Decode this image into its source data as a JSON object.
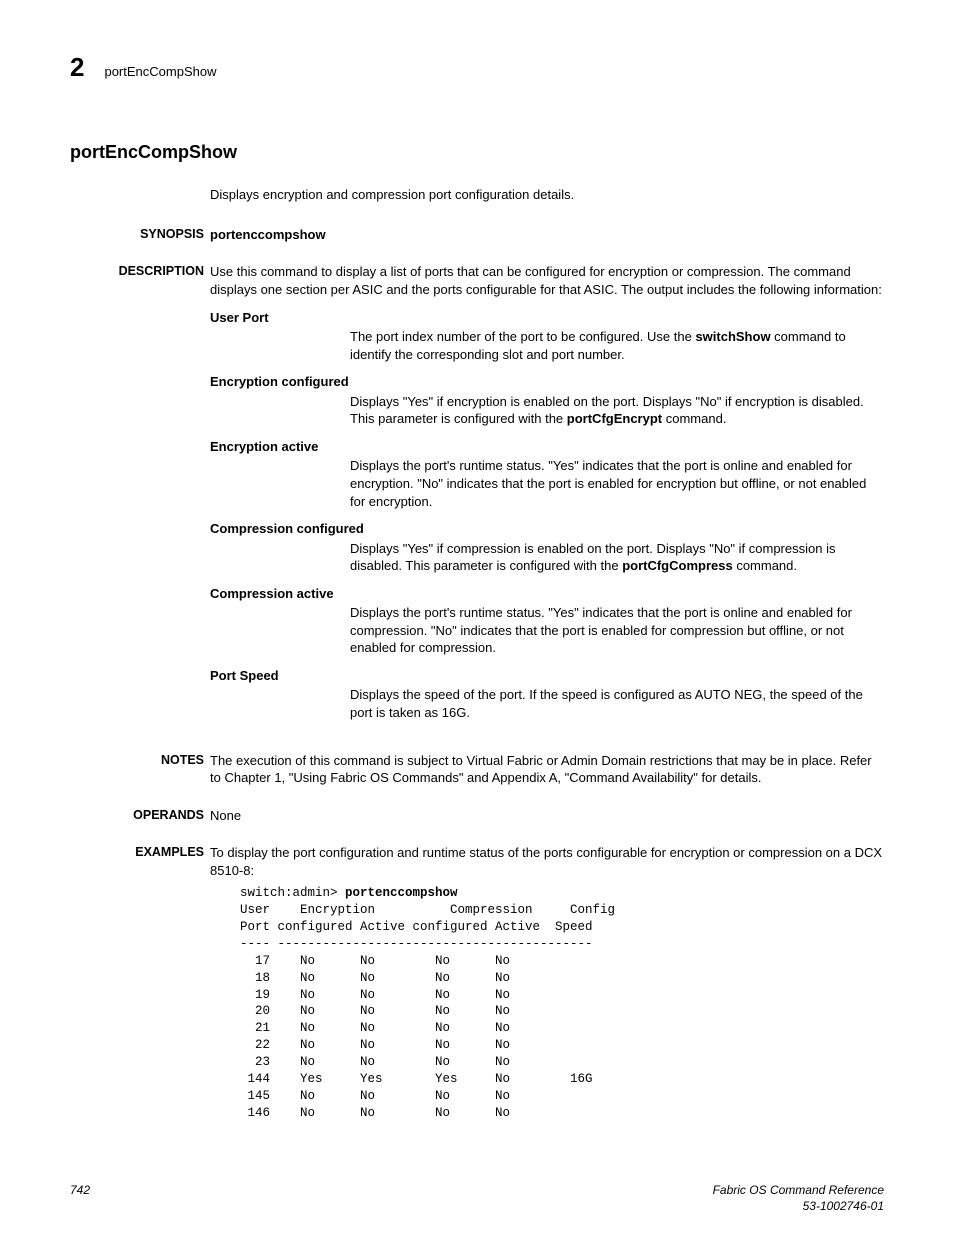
{
  "header": {
    "chapter": "2",
    "command": "portEncCompShow"
  },
  "title": "portEncCompShow",
  "brief": "Displays encryption and compression port configuration details.",
  "synopsis": {
    "label": "SYNOPSIS",
    "text": "portenccompshow"
  },
  "description": {
    "label": "DESCRIPTION",
    "intro": "Use this command to display a list of ports that can be configured for encryption or compression. The command displays one section per ASIC and the ports configurable for that ASIC. The output includes the following information:",
    "params": [
      {
        "term": "User Port",
        "def_pre": "The port index number of the port to be configured. Use the ",
        "def_bold": "switchShow",
        "def_post": " command to identify the corresponding slot and port number."
      },
      {
        "term": "Encryption configured",
        "def_pre": "Displays \"Yes\" if encryption is enabled on the port. Displays \"No\" if encryption is disabled. This parameter is configured with the ",
        "def_bold": "portCfgEncrypt",
        "def_post": " command."
      },
      {
        "term": "Encryption active",
        "def_pre": "Displays the port's runtime status. \"Yes\" indicates that the port is online and enabled for encryption. \"No\" indicates that the port is enabled for encryption but offline, or not enabled for encryption.",
        "def_bold": "",
        "def_post": ""
      },
      {
        "term": "Compression configured",
        "def_pre": "Displays \"Yes\" if compression is enabled on the port. Displays \"No\" if compression is disabled. This parameter is configured with the ",
        "def_bold": "portCfgCompress",
        "def_post": " command."
      },
      {
        "term": "Compression active",
        "def_pre": "Displays the port's runtime status. \"Yes\" indicates that the port is online and enabled for compression. \"No\" indicates that the port is enabled for compression but offline, or not enabled for compression.",
        "def_bold": "",
        "def_post": ""
      },
      {
        "term": "Port Speed",
        "def_pre": "Displays the speed of the port. If the speed is configured as AUTO NEG, the speed of the port is taken as 16G.",
        "def_bold": "",
        "def_post": ""
      }
    ]
  },
  "notes": {
    "label": "NOTES",
    "text": "The execution of this command is subject to Virtual Fabric or Admin Domain restrictions that may be in place. Refer to Chapter 1, \"Using Fabric OS Commands\" and Appendix A, \"Command Availability\" for details."
  },
  "operands": {
    "label": "OPERANDS",
    "text": "None"
  },
  "examples": {
    "label": "EXAMPLES",
    "intro": "To display the port configuration and runtime status of the ports configurable for encryption or compression on a DCX 8510-8:",
    "prompt": "switch:admin> ",
    "cmd": "portenccompshow",
    "header1": "User    Encryption          Compression     Config",
    "header2": "Port configured Active configured Active  Speed",
    "rule": "---- ------------------------------------------",
    "rows": [
      "  17    No      No        No      No",
      "  18    No      No        No      No",
      "  19    No      No        No      No",
      "  20    No      No        No      No",
      "  21    No      No        No      No",
      "  22    No      No        No      No",
      "  23    No      No        No      No",
      " 144    Yes     Yes       Yes     No        16G",
      " 145    No      No        No      No",
      " 146    No      No        No      No"
    ]
  },
  "footer": {
    "page": "742",
    "doc_title": "Fabric OS Command Reference",
    "doc_num": "53-1002746-01"
  }
}
